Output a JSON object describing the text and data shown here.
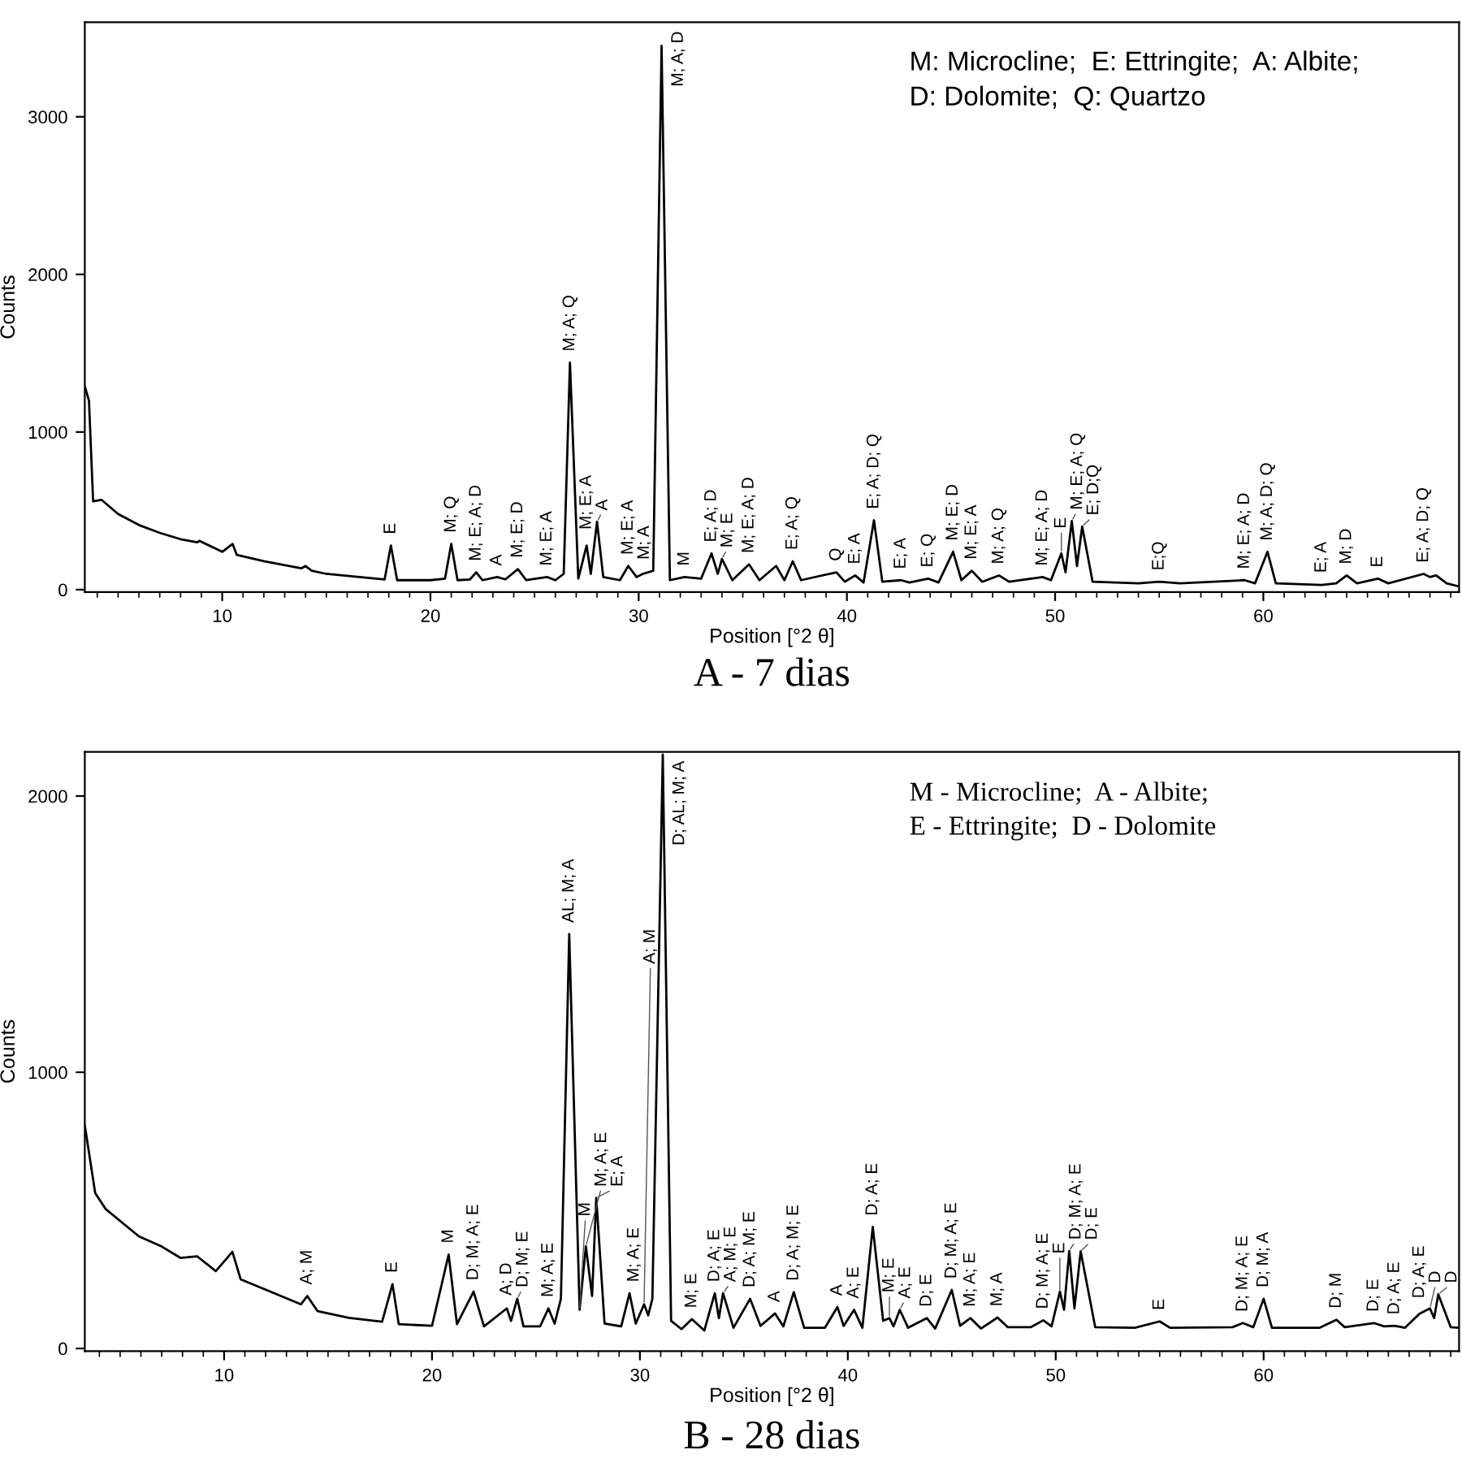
{
  "chart_data": [
    {
      "type": "line",
      "title": "A - 7 dias",
      "xlabel": "Position [°2 θ]",
      "ylabel": "Counts",
      "xlim": [
        3.4,
        69.4
      ],
      "ylim": [
        -15,
        3600
      ],
      "xticks": [
        10,
        20,
        30,
        40,
        50,
        60
      ],
      "yticks": [
        0,
        1000,
        2000,
        3000
      ],
      "series": [
        {
          "color": "#000000",
          "x": [
            3.4,
            3.6,
            3.8,
            4.2,
            5,
            6,
            7,
            8,
            8.8,
            8.9,
            10,
            10.5,
            10.7,
            12,
            13.8,
            14,
            14.3,
            15,
            17,
            17.8,
            18.1,
            18.4,
            20,
            20.7,
            21,
            21.3,
            21.9,
            22.2,
            22.5,
            23.2,
            23.6,
            24.2,
            24.6,
            25.6,
            26,
            26.4,
            26.7,
            27.1,
            27.5,
            27.7,
            28,
            28.3,
            29.1,
            29.5,
            29.9,
            30.2,
            30.7,
            31.1,
            31.5,
            32.2,
            33,
            33.5,
            33.8,
            34,
            34.5,
            35.3,
            35.8,
            36.6,
            37,
            37.4,
            37.8,
            39.5,
            39.9,
            40.4,
            40.8,
            41.3,
            41.7,
            42.6,
            43,
            43.9,
            44.4,
            45.1,
            45.5,
            46,
            46.5,
            47.3,
            47.8,
            49.4,
            49.8,
            50.3,
            50.5,
            50.8,
            51.05,
            51.3,
            51.8,
            54,
            55,
            56,
            59.1,
            59.6,
            60.2,
            60.6,
            62.8,
            63.5,
            64,
            64.5,
            65.5,
            66,
            67.7,
            68,
            68.3,
            68.8,
            69.4
          ],
          "values": [
            1290,
            1200,
            560,
            570,
            480,
            410,
            360,
            320,
            300,
            310,
            240,
            290,
            220,
            180,
            135,
            150,
            120,
            100,
            75,
            65,
            280,
            60,
            60,
            70,
            290,
            60,
            65,
            110,
            60,
            80,
            65,
            130,
            60,
            80,
            60,
            100,
            1440,
            70,
            280,
            100,
            430,
            80,
            60,
            150,
            80,
            100,
            120,
            3450,
            60,
            80,
            70,
            230,
            100,
            195,
            60,
            160,
            60,
            150,
            60,
            180,
            60,
            110,
            50,
            90,
            45,
            440,
            50,
            60,
            45,
            70,
            45,
            240,
            60,
            120,
            50,
            90,
            50,
            80,
            60,
            230,
            110,
            435,
            150,
            400,
            50,
            40,
            50,
            40,
            60,
            40,
            240,
            40,
            30,
            40,
            90,
            40,
            70,
            40,
            100,
            80,
            90,
            40,
            20
          ]
        }
      ],
      "annotations": [
        {
          "text": "E",
          "x": 18.1,
          "y": 280
        },
        {
          "text": "M; Q",
          "x": 21,
          "y": 290
        },
        {
          "text": "M; E; A; D",
          "x": 22.2,
          "y": 110
        },
        {
          "text": "A",
          "x": 23.2,
          "y": 80
        },
        {
          "text": "M; E; D",
          "x": 24.2,
          "y": 130
        },
        {
          "text": "M; E; A",
          "x": 25.6,
          "y": 80
        },
        {
          "text": "M; A; Q",
          "x": 26.7,
          "y": 1440
        },
        {
          "text": "M; E; A",
          "x": 27.5,
          "y": 280
        },
        {
          "text": "A",
          "x": 28,
          "y": 430
        },
        {
          "text": "M; E; A",
          "x": 29.5,
          "y": 150
        },
        {
          "text": "M; A",
          "x": 30.2,
          "y": 100
        },
        {
          "text": "M; A; D",
          "x": 31.1,
          "y": 3450
        },
        {
          "text": "M",
          "x": 32.2,
          "y": 80
        },
        {
          "text": "E; A; D",
          "x": 33.5,
          "y": 230
        },
        {
          "text": "M; E",
          "x": 34,
          "y": 195
        },
        {
          "text": "M; E; A; D",
          "x": 35.3,
          "y": 160
        },
        {
          "text": "E; A; Q",
          "x": 37.4,
          "y": 180
        },
        {
          "text": "Q",
          "x": 39.5,
          "y": 110
        },
        {
          "text": "E; A",
          "x": 40.4,
          "y": 90
        },
        {
          "text": "E; A; D; Q",
          "x": 41.3,
          "y": 440
        },
        {
          "text": "E; A",
          "x": 42.6,
          "y": 60
        },
        {
          "text": "E; Q",
          "x": 43.9,
          "y": 70
        },
        {
          "text": "M; E; D",
          "x": 45.1,
          "y": 240
        },
        {
          "text": "M; E; A",
          "x": 46,
          "y": 120
        },
        {
          "text": "M; A; Q",
          "x": 47.3,
          "y": 90
        },
        {
          "text": "M; E; A; D",
          "x": 49.4,
          "y": 80
        },
        {
          "text": "E",
          "x": 50.3,
          "y": 230
        },
        {
          "text": "M; E; A; Q",
          "x": 50.8,
          "y": 435
        },
        {
          "text": "E; D;Q",
          "x": 51.3,
          "y": 400
        },
        {
          "text": "E;Q",
          "x": 55,
          "y": 40
        },
        {
          "text": "M; E; A; D",
          "x": 59.1,
          "y": 60
        },
        {
          "text": "M; A; D; Q",
          "x": 60.2,
          "y": 240
        },
        {
          "text": "E; A",
          "x": 62.8,
          "y": 30
        },
        {
          "text": "M; D",
          "x": 64,
          "y": 90
        },
        {
          "text": "E",
          "x": 65.5,
          "y": 70
        },
        {
          "text": "E; A; D; Q",
          "x": 67.7,
          "y": 100
        },
        "M: Microcline;  E: Ettringite;  A: Albite;\nD: Dolomite;  Q: Quartzo"
      ]
    },
    {
      "type": "line",
      "title": "B - 28 dias",
      "xlabel": "Position [°2 θ]",
      "ylabel": "Counts",
      "xlim": [
        3.3,
        69.4
      ],
      "ylim": [
        -10,
        2160
      ],
      "xticks": [
        10,
        20,
        30,
        40,
        50,
        60
      ],
      "yticks": [
        0,
        1000,
        2000
      ],
      "series": [
        {
          "color": "#000000",
          "x": [
            3.3,
            3.8,
            4.3,
            5.9,
            7,
            7.9,
            8.7,
            9.6,
            10.4,
            10.8,
            12.1,
            13.7,
            14,
            14.5,
            16,
            17.6,
            18.1,
            18.4,
            20,
            20.8,
            21.2,
            22,
            22.5,
            23.6,
            23.8,
            24.1,
            24.4,
            25.2,
            25.6,
            25.9,
            26.2,
            26.6,
            27.1,
            27.4,
            27.7,
            27.9,
            28.3,
            29.1,
            29.5,
            29.8,
            30.2,
            30.4,
            30.6,
            31.1,
            31.5,
            32,
            32.5,
            33.1,
            33.6,
            33.8,
            34,
            34.5,
            35.3,
            35.8,
            36.5,
            36.9,
            37.4,
            37.9,
            38.9,
            39.5,
            39.8,
            40.3,
            40.7,
            41.2,
            41.7,
            42,
            42.2,
            42.5,
            42.9,
            43.8,
            44.2,
            45,
            45.4,
            45.9,
            46.4,
            47.2,
            47.7,
            48.8,
            49.4,
            49.8,
            50.2,
            50.4,
            50.65,
            50.9,
            51.2,
            51.9,
            53.8,
            55,
            55.5,
            58.5,
            59,
            59.5,
            60,
            60.4,
            62.7,
            63.5,
            63.9,
            65.3,
            65.8,
            66.3,
            66.8,
            67.5,
            68,
            68.2,
            68.4,
            69,
            69.4
          ],
          "values": [
            808,
            563,
            505,
            406,
            369,
            328,
            334,
            280,
            350,
            250,
            210,
            160,
            190,
            135,
            111,
            97,
            233,
            88,
            82,
            340,
            88,
            206,
            80,
            145,
            100,
            180,
            80,
            80,
            145,
            90,
            180,
            1500,
            140,
            370,
            190,
            545,
            90,
            80,
            200,
            90,
            160,
            120,
            180,
            2150,
            100,
            70,
            106,
            65,
            200,
            110,
            200,
            75,
            180,
            82,
            127,
            80,
            204,
            75,
            75,
            150,
            82,
            140,
            75,
            440,
            100,
            110,
            80,
            140,
            75,
            110,
            72,
            212,
            82,
            110,
            72,
            112,
            77,
            77,
            102,
            80,
            206,
            140,
            353,
            145,
            352,
            77,
            75,
            98,
            75,
            77,
            92,
            77,
            180,
            75,
            75,
            104,
            77,
            92,
            80,
            82,
            75,
            126,
            145,
            110,
            196,
            77,
            75
          ]
        }
      ],
      "annotations": [
        {
          "text": "A; M",
          "x": 14,
          "y": 190
        },
        {
          "text": "E",
          "x": 18.1,
          "y": 233
        },
        {
          "text": "M",
          "x": 20.8,
          "y": 340
        },
        {
          "text": "D; M; A; E",
          "x": 22,
          "y": 206
        },
        {
          "text": "A; D",
          "x": 23.6,
          "y": 145
        },
        {
          "text": "D; M; E",
          "x": 24.1,
          "y": 180
        },
        {
          "text": "M; A; E",
          "x": 25.6,
          "y": 145
        },
        {
          "text": "AL; M; A",
          "x": 26.6,
          "y": 1500
        },
        {
          "text": "M",
          "x": 27.1,
          "y": 140
        },
        {
          "text": "M; A; E",
          "x": 27.4,
          "y": 370
        },
        {
          "text": "E; A",
          "x": 27.9,
          "y": 545
        },
        {
          "text": "M; A; E",
          "x": 29.5,
          "y": 200
        },
        {
          "text": "A; M",
          "x": 30.2,
          "y": 160
        },
        {
          "text": "D; AL; M; A",
          "x": 31.1,
          "y": 2150
        },
        {
          "text": "M; E",
          "x": 32.5,
          "y": 106
        },
        {
          "text": "D; A; E",
          "x": 33.6,
          "y": 200
        },
        {
          "text": "A; M; E",
          "x": 34,
          "y": 200
        },
        {
          "text": "D; A; M; E",
          "x": 35.3,
          "y": 180
        },
        {
          "text": "A",
          "x": 36.5,
          "y": 127
        },
        {
          "text": "D; A; M; E",
          "x": 37.4,
          "y": 204
        },
        {
          "text": "A",
          "x": 39.5,
          "y": 150
        },
        {
          "text": "A; E",
          "x": 40.3,
          "y": 140
        },
        {
          "text": "D; A; E",
          "x": 41.2,
          "y": 440
        },
        {
          "text": "M; E",
          "x": 42,
          "y": 110
        },
        {
          "text": "A; E",
          "x": 42.5,
          "y": 140
        },
        {
          "text": "D; E",
          "x": 43.8,
          "y": 110
        },
        {
          "text": "D; M; A; E",
          "x": 45,
          "y": 212
        },
        {
          "text": "M; A; E",
          "x": 45.9,
          "y": 110
        },
        {
          "text": "M; A",
          "x": 47.2,
          "y": 112
        },
        {
          "text": "D; M; A; E",
          "x": 49.4,
          "y": 102
        },
        {
          "text": "E",
          "x": 50.2,
          "y": 206
        },
        {
          "text": "D; M; A; E",
          "x": 50.65,
          "y": 353
        },
        {
          "text": "D; E",
          "x": 51.2,
          "y": 352
        },
        {
          "text": "E",
          "x": 55,
          "y": 98
        },
        {
          "text": "D; M; A; E",
          "x": 59,
          "y": 92
        },
        {
          "text": "D; M; A",
          "x": 60,
          "y": 180
        },
        {
          "text": "D; M",
          "x": 63.5,
          "y": 104
        },
        {
          "text": "D; E",
          "x": 65.3,
          "y": 92
        },
        {
          "text": "D; A; E",
          "x": 66.3,
          "y": 82
        },
        {
          "text": "D; A; E",
          "x": 67.5,
          "y": 126
        },
        {
          "text": "D",
          "x": 68,
          "y": 145
        },
        {
          "text": "D",
          "x": 68.4,
          "y": 196
        },
        "M - Microcline;  A - Albite;\nE - Ettringite;  D - Dolomite"
      ]
    }
  ]
}
